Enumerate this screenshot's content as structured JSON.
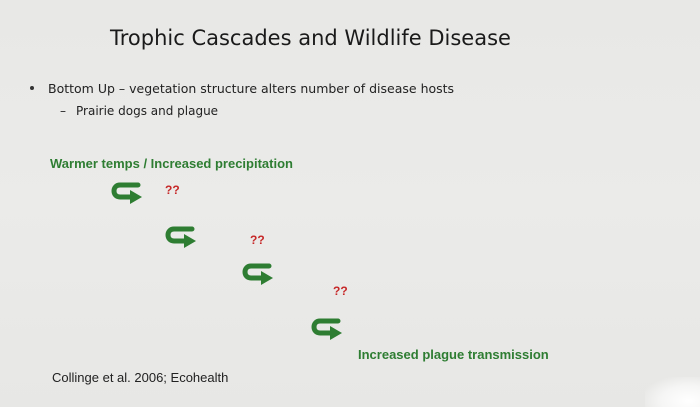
{
  "slide": {
    "title": "Trophic Cascades and Wildlife Disease",
    "bullet": "Bottom Up – vegetation structure alters number of disease hosts",
    "sub_bullet_marker": "–",
    "sub_bullet": "Prairie dogs and plague",
    "top_label": "Warmer temps / Increased precipitation",
    "bottom_label": "Increased plague transmission",
    "questions": [
      "??",
      "??",
      "??"
    ],
    "citation": "Collinge et al. 2006; Ecohealth",
    "arrow_icon": "curved-u-turn-arrow-icon",
    "colors": {
      "green": "#2e7d32",
      "red": "#c62828"
    }
  }
}
